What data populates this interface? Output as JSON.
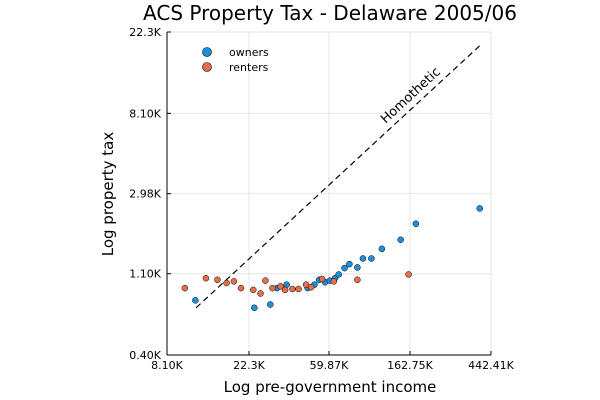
{
  "chart_data": {
    "type": "scatter",
    "title": "ACS Property Tax - Delaware 2005/06",
    "xlabel": "Log pre-government income",
    "ylabel": "Log property tax",
    "x_scale": "log",
    "y_scale": "log",
    "xlim": [
      8100,
      442410
    ],
    "ylim": [
      400,
      22300
    ],
    "x_ticks": [
      8100,
      22300,
      59870,
      162750,
      442410
    ],
    "x_tick_labels": [
      "8.10K",
      "22.3K",
      "59.87K",
      "162.75K",
      "442.41K"
    ],
    "y_ticks": [
      400,
      1100,
      2980,
      8100,
      22300
    ],
    "y_tick_labels": [
      "0.40K",
      "1.10K",
      "2.98K",
      "8.10K",
      "22.3K"
    ],
    "grid": true,
    "legend_position": "top-left",
    "annotation": {
      "text": "Homothetic",
      "line": {
        "from": [
          11600,
          720
        ],
        "to": [
          385000,
          18800
        ]
      }
    },
    "series": [
      {
        "name": "owners",
        "color": "#1e8fdc",
        "points": [
          [
            11500,
            790
          ],
          [
            23800,
            720
          ],
          [
            29000,
            750
          ],
          [
            31500,
            920
          ],
          [
            35500,
            960
          ],
          [
            46000,
            920
          ],
          [
            50000,
            960
          ],
          [
            53000,
            1020
          ],
          [
            57000,
            990
          ],
          [
            60500,
            1010
          ],
          [
            64500,
            1040
          ],
          [
            67500,
            1090
          ],
          [
            72500,
            1180
          ],
          [
            77000,
            1240
          ],
          [
            85000,
            1190
          ],
          [
            91000,
            1330
          ],
          [
            101000,
            1330
          ],
          [
            115000,
            1500
          ],
          [
            145000,
            1680
          ],
          [
            175000,
            2050
          ],
          [
            385000,
            2480
          ]
        ]
      },
      {
        "name": "renters",
        "color": "#e3704a",
        "points": [
          [
            10100,
            920
          ],
          [
            13100,
            1040
          ],
          [
            15100,
            1020
          ],
          [
            16900,
            980
          ],
          [
            18500,
            1000
          ],
          [
            20200,
            920
          ],
          [
            23500,
            900
          ],
          [
            25700,
            860
          ],
          [
            27300,
            1010
          ],
          [
            29800,
            920
          ],
          [
            32900,
            940
          ],
          [
            34800,
            900
          ],
          [
            38100,
            910
          ],
          [
            41100,
            910
          ],
          [
            45100,
            960
          ],
          [
            48000,
            930
          ],
          [
            55000,
            1030
          ],
          [
            63500,
            1000
          ],
          [
            85000,
            1020
          ],
          [
            160000,
            1090
          ]
        ]
      }
    ]
  }
}
